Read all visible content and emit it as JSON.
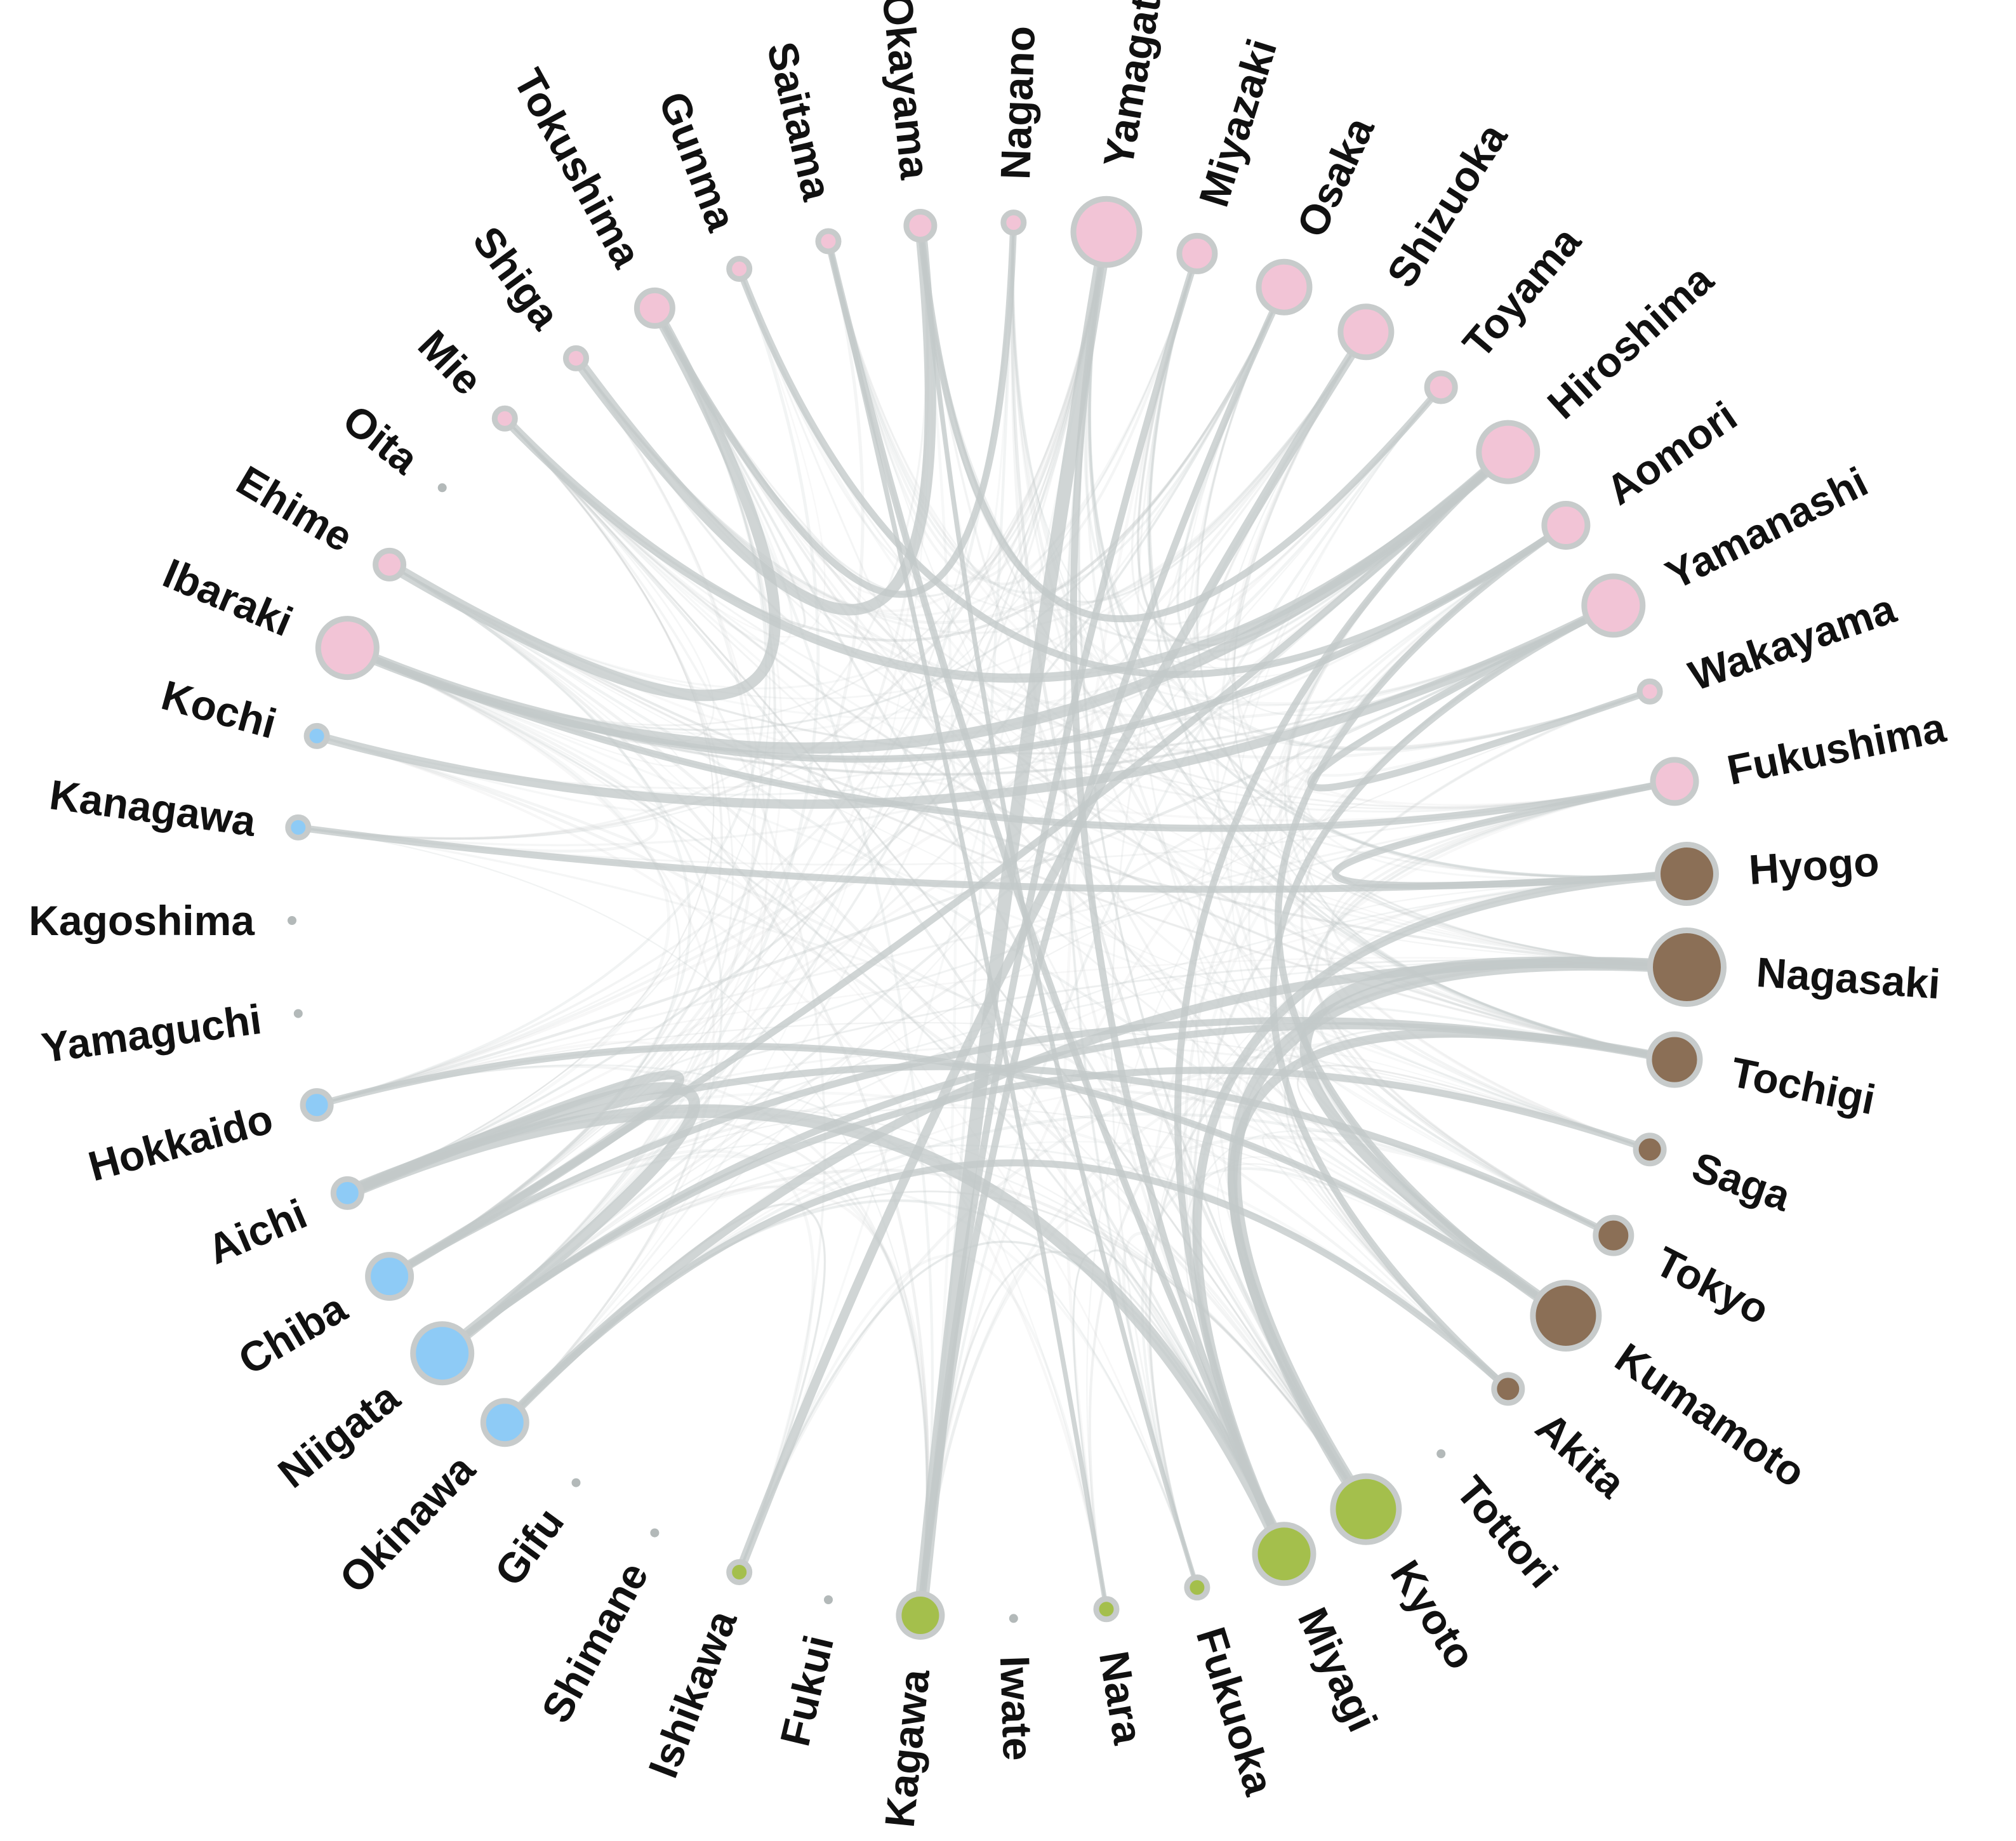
{
  "diagram": {
    "type": "chord-network",
    "colors": {
      "edge": "#c3c9c9",
      "node_stroke": "#c7cbcb",
      "label": "#111111",
      "groups": {
        "pink": "#f2c4d6",
        "blue": "#8ecbf6",
        "green": "#a4bf4c",
        "brown": "#8b6f56",
        "gray": "#b3b9b9"
      }
    },
    "nodes": [
      {
        "id": "Kagoshima",
        "label": "Kagoshima",
        "group": "gray",
        "size": 0
      },
      {
        "id": "Kanagawa",
        "label": "Kanagawa",
        "group": "blue",
        "size": 1
      },
      {
        "id": "Kochi",
        "label": "Kochi",
        "group": "blue",
        "size": 1
      },
      {
        "id": "Ibaraki",
        "label": "Ibaraki",
        "group": "pink",
        "size": 6
      },
      {
        "id": "Ehime",
        "label": "Ehime",
        "group": "pink",
        "size": 2
      },
      {
        "id": "Oita",
        "label": "Oita",
        "group": "gray",
        "size": 0
      },
      {
        "id": "Mie",
        "label": "Mie",
        "group": "pink",
        "size": 1
      },
      {
        "id": "Shiga",
        "label": "Shiga",
        "group": "pink",
        "size": 1
      },
      {
        "id": "Tokushima",
        "label": "Tokushima",
        "group": "pink",
        "size": 3
      },
      {
        "id": "Gunma",
        "label": "Gunma",
        "group": "pink",
        "size": 1
      },
      {
        "id": "Saitama",
        "label": "Saitama",
        "group": "pink",
        "size": 1
      },
      {
        "id": "Okayama",
        "label": "Okayama",
        "group": "pink",
        "size": 2
      },
      {
        "id": "Nagano",
        "label": "Nagano",
        "group": "pink",
        "size": 1
      },
      {
        "id": "Yamagata",
        "label": "Yamagata",
        "group": "pink",
        "size": 7
      },
      {
        "id": "Miyazaki",
        "label": "Miyazaki",
        "group": "pink",
        "size": 3
      },
      {
        "id": "Osaka",
        "label": "Osaka",
        "group": "pink",
        "size": 5
      },
      {
        "id": "Shizuoka",
        "label": "Shizuoka",
        "group": "pink",
        "size": 5
      },
      {
        "id": "Toyama",
        "label": "Toyama",
        "group": "pink",
        "size": 2
      },
      {
        "id": "Hiroshima",
        "label": "Hiroshima",
        "group": "pink",
        "size": 6
      },
      {
        "id": "Aomori",
        "label": "Aomori",
        "group": "pink",
        "size": 4
      },
      {
        "id": "Yamanashi",
        "label": "Yamanashi",
        "group": "pink",
        "size": 6
      },
      {
        "id": "Wakayama",
        "label": "Wakayama",
        "group": "pink",
        "size": 1
      },
      {
        "id": "Fukushima",
        "label": "Fukushima",
        "group": "pink",
        "size": 4
      },
      {
        "id": "Hyogo",
        "label": "Hyogo",
        "group": "brown",
        "size": 6
      },
      {
        "id": "Nagasaki",
        "label": "Nagasaki",
        "group": "brown",
        "size": 8
      },
      {
        "id": "Tochigi",
        "label": "Tochigi",
        "group": "brown",
        "size": 5
      },
      {
        "id": "Saga",
        "label": "Saga",
        "group": "brown",
        "size": 2
      },
      {
        "id": "Tokyo",
        "label": "Tokyo",
        "group": "brown",
        "size": 3
      },
      {
        "id": "Kumamoto",
        "label": "Kumamoto",
        "group": "brown",
        "size": 7
      },
      {
        "id": "Akita",
        "label": "Akita",
        "group": "brown",
        "size": 2
      },
      {
        "id": "Tottori",
        "label": "Tottori",
        "group": "gray",
        "size": 0
      },
      {
        "id": "Kyoto",
        "label": "Kyoto",
        "group": "green",
        "size": 7
      },
      {
        "id": "Miyagi",
        "label": "Miyagi",
        "group": "green",
        "size": 6
      },
      {
        "id": "Fukuoka",
        "label": "Fukuoka",
        "group": "green",
        "size": 1
      },
      {
        "id": "Nara",
        "label": "Nara",
        "group": "green",
        "size": 1
      },
      {
        "id": "Iwate",
        "label": "Iwate",
        "group": "gray",
        "size": 0
      },
      {
        "id": "Kagawa",
        "label": "Kagawa",
        "group": "green",
        "size": 4
      },
      {
        "id": "Fukui",
        "label": "Fukui",
        "group": "gray",
        "size": 0
      },
      {
        "id": "Ishikawa",
        "label": "Ishikawa",
        "group": "green",
        "size": 1
      },
      {
        "id": "Shimane",
        "label": "Shimane",
        "group": "gray",
        "size": 0
      },
      {
        "id": "Gifu",
        "label": "Gifu",
        "group": "gray",
        "size": 0
      },
      {
        "id": "Okinawa",
        "label": "Okinawa",
        "group": "blue",
        "size": 4
      },
      {
        "id": "Niigata",
        "label": "Niigata",
        "group": "blue",
        "size": 6
      },
      {
        "id": "Chiba",
        "label": "Chiba",
        "group": "blue",
        "size": 4
      },
      {
        "id": "Aichi",
        "label": "Aichi",
        "group": "blue",
        "size": 2
      },
      {
        "id": "Hokkaido",
        "label": "Hokkaido",
        "group": "blue",
        "size": 2
      },
      {
        "id": "Yamaguchi",
        "label": "Yamaguchi",
        "group": "gray",
        "size": 0
      }
    ],
    "strong_links": [
      [
        "Aichi",
        "Miyagi",
        5
      ],
      [
        "Niigata",
        "Aichi",
        4
      ],
      [
        "Chiba",
        "Aichi",
        3
      ],
      [
        "Okinawa",
        "Nagasaki",
        3
      ],
      [
        "Niigata",
        "Tochigi",
        2
      ],
      [
        "Kyoto",
        "Nagasaki",
        5
      ],
      [
        "Kyoto",
        "Tochigi",
        3
      ],
      [
        "Kumamoto",
        "Nagasaki",
        4
      ],
      [
        "Miyagi",
        "Hyogo",
        3
      ],
      [
        "Kagawa",
        "Yamagata",
        5
      ],
      [
        "Ishikawa",
        "Shizuoka",
        3
      ],
      [
        "Miyagi",
        "Hiroshima",
        2
      ],
      [
        "Ibaraki",
        "Hiroshima",
        4
      ],
      [
        "Ibaraki",
        "Fukushima",
        2
      ],
      [
        "Ehime",
        "Tokushima",
        4
      ],
      [
        "Shiga",
        "Okayama",
        4
      ],
      [
        "Mie",
        "Hiroshima",
        3
      ],
      [
        "Kochi",
        "Yamanashi",
        3
      ],
      [
        "Kanagawa",
        "Hyogo",
        2
      ],
      [
        "Saitama",
        "Miyagi",
        2
      ],
      [
        "Osaka",
        "Kagawa",
        2
      ],
      [
        "Miyazaki",
        "Kagawa",
        2
      ],
      [
        "Gunma",
        "Aomori",
        2
      ],
      [
        "Okayama",
        "Toyama",
        2
      ],
      [
        "Aomori",
        "Ibaraki",
        2
      ],
      [
        "Chiba",
        "Hiroshima",
        2
      ],
      [
        "Kumamoto",
        "Hokkaido",
        2
      ],
      [
        "Akita",
        "Okinawa",
        2
      ],
      [
        "Tokyo",
        "Aichi",
        2
      ],
      [
        "Saga",
        "Niigata",
        2
      ],
      [
        "Fukushima",
        "Hyogo",
        2
      ],
      [
        "Wakayama",
        "Yamanashi",
        2
      ],
      [
        "Tochigi",
        "Chiba",
        2
      ],
      [
        "Nagano",
        "Tokushima",
        2
      ],
      [
        "Yamagata",
        "Miyagi",
        2
      ],
      [
        "Kumamoto",
        "Aomori",
        2
      ],
      [
        "Akita",
        "Yamanashi",
        2
      ],
      [
        "Fukuoka",
        "Okayama",
        1
      ],
      [
        "Nara",
        "Saitama",
        1
      ]
    ]
  }
}
